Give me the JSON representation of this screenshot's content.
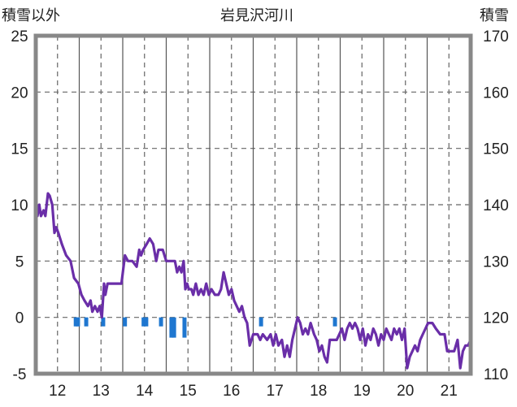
{
  "chart_data": {
    "type": "line",
    "title": "岩見沢河川",
    "left_axis_label": "積雪以外",
    "right_axis_label": "積雪",
    "x_ticks": [
      "12",
      "13",
      "14",
      "15",
      "16",
      "17",
      "18",
      "19",
      "20",
      "21"
    ],
    "xlim": [
      11.5,
      21.5
    ],
    "left_ylim": [
      -5,
      25
    ],
    "left_ticks": [
      "-5",
      "0",
      "5",
      "10",
      "15",
      "20",
      "25"
    ],
    "right_ylim": [
      110,
      170
    ],
    "right_ticks": [
      "110",
      "120",
      "130",
      "140",
      "150",
      "160",
      "170"
    ],
    "grid": true,
    "series": [
      {
        "axis": "left",
        "color": "#1f77d0",
        "style": "bars",
        "values": [
          {
            "x": 12.42,
            "y": -0.8
          },
          {
            "x": 12.47,
            "y": -0.8
          },
          {
            "x": 12.66,
            "y": -0.8
          },
          {
            "x": 13.05,
            "y": -0.8
          },
          {
            "x": 13.55,
            "y": -0.8
          },
          {
            "x": 13.98,
            "y": -0.8
          },
          {
            "x": 14.04,
            "y": -0.8
          },
          {
            "x": 14.38,
            "y": -0.8
          },
          {
            "x": 14.62,
            "y": -1.8
          },
          {
            "x": 14.68,
            "y": -1.8
          },
          {
            "x": 14.92,
            "y": -1.8
          },
          {
            "x": 16.68,
            "y": -0.8
          },
          {
            "x": 18.38,
            "y": -0.8
          }
        ]
      },
      {
        "axis": "left",
        "color": "#6a2ea8",
        "style": "line",
        "values": [
          {
            "x": 11.5,
            "y": 11
          },
          {
            "x": 11.54,
            "y": 9
          },
          {
            "x": 11.58,
            "y": 10
          },
          {
            "x": 11.62,
            "y": 9
          },
          {
            "x": 11.68,
            "y": 9.5
          },
          {
            "x": 11.72,
            "y": 9
          },
          {
            "x": 11.78,
            "y": 11
          },
          {
            "x": 11.82,
            "y": 10.8
          },
          {
            "x": 11.88,
            "y": 10
          },
          {
            "x": 11.93,
            "y": 7.5
          },
          {
            "x": 11.97,
            "y": 8
          },
          {
            "x": 12.02,
            "y": 7.5
          },
          {
            "x": 12.1,
            "y": 6.5
          },
          {
            "x": 12.2,
            "y": 5.5
          },
          {
            "x": 12.3,
            "y": 5
          },
          {
            "x": 12.38,
            "y": 3.5
          },
          {
            "x": 12.48,
            "y": 3
          },
          {
            "x": 12.55,
            "y": 2
          },
          {
            "x": 12.62,
            "y": 1.5
          },
          {
            "x": 12.7,
            "y": 1
          },
          {
            "x": 12.76,
            "y": 1.5
          },
          {
            "x": 12.8,
            "y": 0.5
          },
          {
            "x": 12.86,
            "y": 1
          },
          {
            "x": 12.92,
            "y": 0.5
          },
          {
            "x": 12.97,
            "y": 1
          },
          {
            "x": 13.02,
            "y": 0
          },
          {
            "x": 13.07,
            "y": 3
          },
          {
            "x": 13.1,
            "y": 2
          },
          {
            "x": 13.15,
            "y": 3
          },
          {
            "x": 13.25,
            "y": 3
          },
          {
            "x": 13.38,
            "y": 3
          },
          {
            "x": 13.47,
            "y": 3
          },
          {
            "x": 13.55,
            "y": 5.5
          },
          {
            "x": 13.62,
            "y": 5
          },
          {
            "x": 13.72,
            "y": 5
          },
          {
            "x": 13.82,
            "y": 4.5
          },
          {
            "x": 13.88,
            "y": 6
          },
          {
            "x": 13.92,
            "y": 5.5
          },
          {
            "x": 13.97,
            "y": 6
          },
          {
            "x": 14.05,
            "y": 6.5
          },
          {
            "x": 14.12,
            "y": 7
          },
          {
            "x": 14.2,
            "y": 6.5
          },
          {
            "x": 14.27,
            "y": 5
          },
          {
            "x": 14.32,
            "y": 6
          },
          {
            "x": 14.42,
            "y": 6
          },
          {
            "x": 14.5,
            "y": 5
          },
          {
            "x": 14.58,
            "y": 5
          },
          {
            "x": 14.7,
            "y": 5
          },
          {
            "x": 14.75,
            "y": 4
          },
          {
            "x": 14.8,
            "y": 4.5
          },
          {
            "x": 14.85,
            "y": 4
          },
          {
            "x": 14.9,
            "y": 5
          },
          {
            "x": 14.94,
            "y": 2.5
          },
          {
            "x": 14.98,
            "y": 3
          },
          {
            "x": 15.02,
            "y": 2.5
          },
          {
            "x": 15.08,
            "y": 2.5
          },
          {
            "x": 15.12,
            "y": 2
          },
          {
            "x": 15.18,
            "y": 3
          },
          {
            "x": 15.24,
            "y": 2
          },
          {
            "x": 15.3,
            "y": 2.5
          },
          {
            "x": 15.36,
            "y": 2
          },
          {
            "x": 15.42,
            "y": 3
          },
          {
            "x": 15.48,
            "y": 2
          },
          {
            "x": 15.54,
            "y": 2.5
          },
          {
            "x": 15.62,
            "y": 2
          },
          {
            "x": 15.7,
            "y": 2
          },
          {
            "x": 15.76,
            "y": 2.5
          },
          {
            "x": 15.82,
            "y": 4
          },
          {
            "x": 15.88,
            "y": 3
          },
          {
            "x": 15.94,
            "y": 2
          },
          {
            "x": 16.0,
            "y": 2.5
          },
          {
            "x": 16.06,
            "y": 1.5
          },
          {
            "x": 16.12,
            "y": 1
          },
          {
            "x": 16.18,
            "y": 0.5
          },
          {
            "x": 16.24,
            "y": 1
          },
          {
            "x": 16.3,
            "y": 0
          },
          {
            "x": 16.36,
            "y": -0.5
          },
          {
            "x": 16.42,
            "y": -2.5
          },
          {
            "x": 16.5,
            "y": -1.5
          },
          {
            "x": 16.6,
            "y": -1.5
          },
          {
            "x": 16.66,
            "y": -2
          },
          {
            "x": 16.72,
            "y": -1.5
          },
          {
            "x": 16.82,
            "y": -2
          },
          {
            "x": 16.9,
            "y": -1.5
          },
          {
            "x": 16.96,
            "y": -2.5
          },
          {
            "x": 17.02,
            "y": -1.5
          },
          {
            "x": 17.08,
            "y": -2.5
          },
          {
            "x": 17.16,
            "y": -2
          },
          {
            "x": 17.22,
            "y": -3.5
          },
          {
            "x": 17.28,
            "y": -2.5
          },
          {
            "x": 17.34,
            "y": -3.5
          },
          {
            "x": 17.4,
            "y": -2
          },
          {
            "x": 17.46,
            "y": -1
          },
          {
            "x": 17.52,
            "y": 0
          },
          {
            "x": 17.58,
            "y": -0.5
          },
          {
            "x": 17.64,
            "y": -1.5
          },
          {
            "x": 17.7,
            "y": -1
          },
          {
            "x": 17.76,
            "y": -1.5
          },
          {
            "x": 17.82,
            "y": -0.5
          },
          {
            "x": 17.9,
            "y": -1.5
          },
          {
            "x": 17.96,
            "y": -2
          },
          {
            "x": 18.02,
            "y": -3
          },
          {
            "x": 18.08,
            "y": -2.5
          },
          {
            "x": 18.14,
            "y": -3.5
          },
          {
            "x": 18.2,
            "y": -4
          },
          {
            "x": 18.26,
            "y": -2
          },
          {
            "x": 18.34,
            "y": -2
          },
          {
            "x": 18.42,
            "y": -2
          },
          {
            "x": 18.48,
            "y": -1.5
          },
          {
            "x": 18.54,
            "y": -1
          },
          {
            "x": 18.6,
            "y": -2
          },
          {
            "x": 18.66,
            "y": -1
          },
          {
            "x": 18.72,
            "y": -0.5
          },
          {
            "x": 18.78,
            "y": -1
          },
          {
            "x": 18.84,
            "y": -0.5
          },
          {
            "x": 18.9,
            "y": -1
          },
          {
            "x": 18.96,
            "y": -2
          },
          {
            "x": 19.02,
            "y": -1
          },
          {
            "x": 19.08,
            "y": -2.5
          },
          {
            "x": 19.14,
            "y": -1.5
          },
          {
            "x": 19.2,
            "y": -2
          },
          {
            "x": 19.26,
            "y": -1
          },
          {
            "x": 19.32,
            "y": -1.5
          },
          {
            "x": 19.38,
            "y": -2.5
          },
          {
            "x": 19.44,
            "y": -1.5
          },
          {
            "x": 19.5,
            "y": -2
          },
          {
            "x": 19.56,
            "y": -1
          },
          {
            "x": 19.62,
            "y": -1.5
          },
          {
            "x": 19.68,
            "y": -2
          },
          {
            "x": 19.74,
            "y": -1
          },
          {
            "x": 19.8,
            "y": -1.5
          },
          {
            "x": 19.86,
            "y": -1
          },
          {
            "x": 19.92,
            "y": -2
          },
          {
            "x": 19.98,
            "y": -1
          },
          {
            "x": 20.04,
            "y": -4.5
          },
          {
            "x": 20.1,
            "y": -3.5
          },
          {
            "x": 20.16,
            "y": -3
          },
          {
            "x": 20.22,
            "y": -2.5
          },
          {
            "x": 20.28,
            "y": -3
          },
          {
            "x": 20.34,
            "y": -2
          },
          {
            "x": 20.4,
            "y": -1.5
          },
          {
            "x": 20.46,
            "y": -1
          },
          {
            "x": 20.52,
            "y": -0.5
          },
          {
            "x": 20.62,
            "y": -0.5
          },
          {
            "x": 20.7,
            "y": -1
          },
          {
            "x": 20.8,
            "y": -1.5
          },
          {
            "x": 20.9,
            "y": -1.5
          },
          {
            "x": 20.96,
            "y": -3
          },
          {
            "x": 21.04,
            "y": -3
          },
          {
            "x": 21.12,
            "y": -3
          },
          {
            "x": 21.2,
            "y": -2
          },
          {
            "x": 21.26,
            "y": -4.5
          },
          {
            "x": 21.32,
            "y": -3
          },
          {
            "x": 21.38,
            "y": -2.5
          },
          {
            "x": 21.44,
            "y": -2.5
          },
          {
            "x": 21.5,
            "y": -2
          }
        ]
      }
    ]
  }
}
